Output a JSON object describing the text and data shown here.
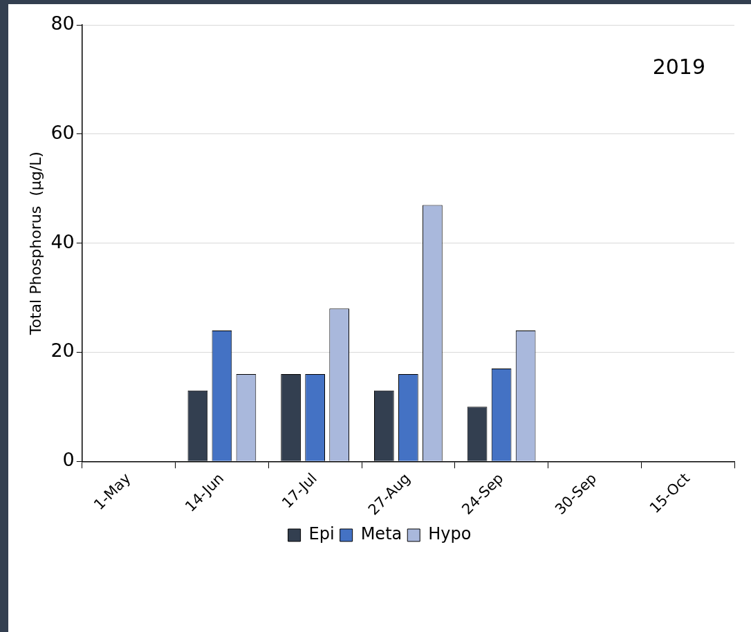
{
  "chart_data": {
    "type": "bar",
    "ylabel": "Total Phosphorus  (µg/L)",
    "annotations": [
      "2019"
    ],
    "categories": [
      "1-May",
      "14-Jun",
      "17-Jul",
      "27-Aug",
      "24-Sep",
      "30-Sep",
      "15-Oct"
    ],
    "series": [
      {
        "name": "Epi",
        "color": "#333f50",
        "values": [
          null,
          13,
          16,
          13,
          10,
          null,
          null
        ]
      },
      {
        "name": "Meta",
        "color": "#4472c4",
        "values": [
          null,
          24,
          16,
          16,
          17,
          null,
          null
        ]
      },
      {
        "name": "Hypo",
        "color": "#a9b8dc",
        "values": [
          null,
          16,
          28,
          47,
          24,
          null,
          null
        ]
      }
    ],
    "ylim": [
      0,
      80
    ],
    "yticks": [
      0,
      20,
      40,
      60,
      80
    ],
    "grid": "y",
    "legend": "bottom"
  }
}
